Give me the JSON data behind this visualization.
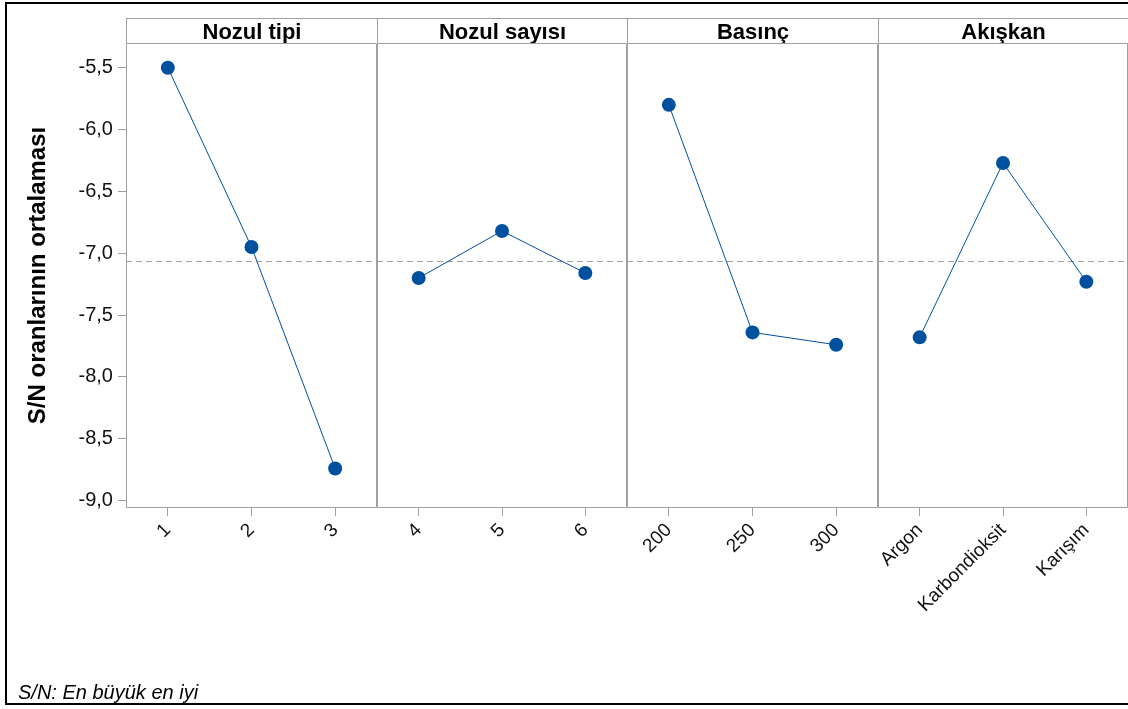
{
  "chart_data": [
    {
      "type": "line",
      "title": "Nozul tipi",
      "ylabel": "S/N oranlarının ortalaması",
      "categories": [
        "1",
        "2",
        "3"
      ],
      "values": [
        -5.5,
        -6.95,
        -8.74
      ],
      "color": "#0050a0",
      "marker": "circle",
      "line_style": "solid",
      "ylim": [
        -9.06,
        -5.3
      ],
      "yticks": [
        {
          "value": -9,
          "label": "-9,0"
        },
        {
          "value": -8.5,
          "label": "-8,5"
        },
        {
          "value": -8,
          "label": "-8,0"
        },
        {
          "value": -7.5,
          "label": "-7,5"
        },
        {
          "value": -7,
          "label": "-7,0"
        },
        {
          "value": -6.5,
          "label": "-6,5"
        },
        {
          "value": -6,
          "label": "-6,0"
        },
        {
          "value": -5.5,
          "label": "-5,5"
        }
      ],
      "ref_lines": [
        {
          "axis": "y",
          "value": -7.06,
          "color": "#a0a0a0",
          "line_style": "dashed"
        }
      ],
      "annotations": [
        "S/N: En büyük en iyi"
      ]
    },
    {
      "type": "line",
      "title": "Nozul sayısı",
      "categories": [
        "4",
        "5",
        "6"
      ],
      "values": [
        -7.2,
        -6.82,
        -7.16
      ],
      "color": "#0050a0",
      "marker": "circle",
      "line_style": "solid",
      "ylim": [
        -9.06,
        -5.3
      ],
      "tick_labels": "x",
      "ref_lines": [
        {
          "axis": "y",
          "value": -7.06,
          "color": "#a0a0a0",
          "line_style": "dashed"
        }
      ]
    },
    {
      "type": "line",
      "title": "Basınç",
      "categories": [
        "200",
        "250",
        "300"
      ],
      "values": [
        -5.8,
        -7.64,
        -7.74
      ],
      "color": "#0050a0",
      "marker": "circle",
      "line_style": "solid",
      "ylim": [
        -9.06,
        -5.3
      ],
      "tick_labels": "x",
      "ref_lines": [
        {
          "axis": "y",
          "value": -7.06,
          "color": "#a0a0a0",
          "line_style": "dashed"
        }
      ]
    },
    {
      "type": "line",
      "title": "Akışkan",
      "categories": [
        "Argon",
        "Karbondioksit",
        "Karışım"
      ],
      "values": [
        -7.68,
        -6.27,
        -7.23
      ],
      "color": "#0050a0",
      "marker": "circle",
      "line_style": "solid",
      "ylim": [
        -9.06,
        -5.3
      ],
      "tick_labels": "x",
      "ref_lines": [
        {
          "axis": "y",
          "value": -7.06,
          "color": "#a0a0a0",
          "line_style": "dashed"
        }
      ]
    }
  ]
}
